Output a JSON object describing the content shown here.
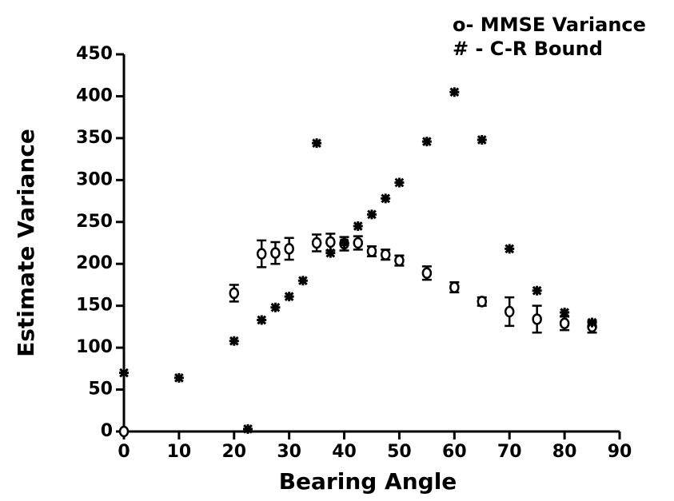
{
  "chart_data": {
    "type": "scatter",
    "x_label": "Bearing Angle",
    "y_label": "Estimate Variance",
    "xlim": [
      0,
      90
    ],
    "ylim": [
      0,
      450
    ],
    "xticks": [
      0,
      10,
      20,
      30,
      40,
      50,
      60,
      70,
      80,
      90
    ],
    "yticks": [
      0,
      50,
      100,
      150,
      200,
      250,
      300,
      350,
      400,
      450
    ],
    "series": [
      {
        "name": "o- MMSE Variance",
        "color": "#000000",
        "marker": "circle",
        "x": [
          0,
          20,
          25,
          27.5,
          30,
          35,
          37.5,
          40,
          42.5,
          45,
          47.5,
          50,
          55,
          60,
          65,
          70,
          75,
          80,
          85
        ],
        "values": [
          0,
          165,
          212,
          213,
          218,
          225,
          226,
          224,
          225,
          215,
          211,
          204,
          189,
          172,
          155,
          143,
          134,
          129,
          125
        ],
        "errors": [
          null,
          10,
          16,
          13,
          13,
          10,
          10,
          8,
          8,
          6,
          6,
          6,
          8,
          6,
          5,
          17,
          16,
          8,
          7
        ]
      },
      {
        "name": "# - C-R Bound",
        "color": "#000000",
        "marker": "star",
        "x": [
          0,
          10,
          20,
          22.5,
          25,
          27.5,
          30,
          32.5,
          35,
          37.5,
          40,
          42.5,
          45,
          47.5,
          50,
          55,
          60,
          65,
          70,
          75,
          80,
          85
        ],
        "values": [
          70,
          64,
          108,
          3,
          133,
          148,
          161,
          180,
          344,
          213,
          225,
          245,
          259,
          278,
          297,
          346,
          405,
          348,
          218,
          168,
          142,
          130
        ]
      }
    ]
  }
}
